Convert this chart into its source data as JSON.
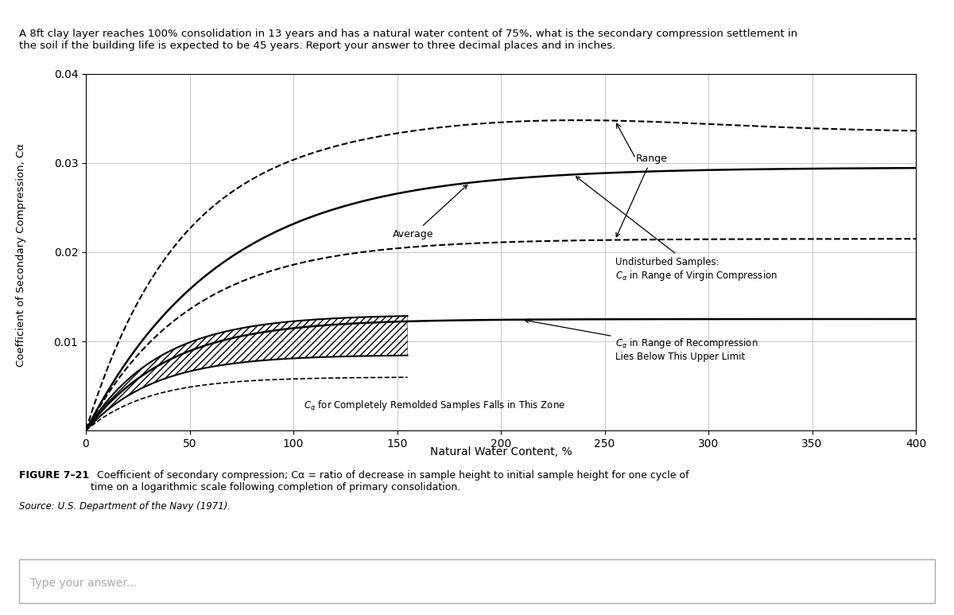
{
  "title_text": "A 8ft clay layer reaches 100% consolidation in 13 years and has a natural water content of 75%, what is the secondary compression settlement in\nthe soil if the building life is expected to be 45 years. Report your answer to three decimal places and in inches.",
  "xlabel": "Natural Water Content, %",
  "ylabel": "Coefficient of Secondary Compression, Cα",
  "xlim": [
    0,
    400
  ],
  "ylim": [
    0,
    0.04
  ],
  "yticks": [
    0.01,
    0.02,
    0.03,
    0.04
  ],
  "xticks": [
    0,
    50,
    100,
    150,
    200,
    250,
    300,
    350,
    400
  ],
  "figure_caption_bold": "FIGURE 7–21",
  "figure_caption_normal": "  Coefficient of secondary compression; Cα = ratio of decrease in sample height to initial sample height for one cycle of\ntime on a logarithmic scale following completion of primary consolidation.",
  "source_text": "Source: U.S. Department of the Navy (1971).",
  "answer_placeholder": "Type your answer...",
  "bg_color": "#ffffff",
  "grid_color": "#cccccc",
  "line_color": "#000000"
}
